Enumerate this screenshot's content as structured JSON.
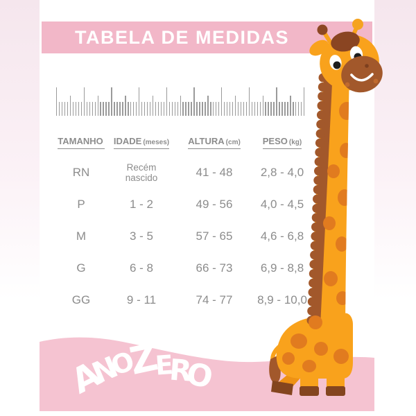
{
  "header": {
    "title": "TABELA DE MEDIDAS"
  },
  "table": {
    "columns": [
      {
        "label": "TAMANHO",
        "unit": ""
      },
      {
        "label": "IDADE",
        "unit": "(meses)"
      },
      {
        "label": "ALTURA",
        "unit": "(cm)"
      },
      {
        "label": "PESO",
        "unit": "(kg)"
      }
    ],
    "rows": [
      {
        "size": "RN",
        "age": "Recém nascido",
        "height": "41 - 48",
        "weight": "2,8 - 4,0"
      },
      {
        "size": "P",
        "age": "1 - 2",
        "height": "49 - 56",
        "weight": "4,0 - 4,5"
      },
      {
        "size": "M",
        "age": "3 - 5",
        "height": "57 - 65",
        "weight": "4,6 - 6,8"
      },
      {
        "size": "G",
        "age": "6 - 8",
        "height": "66 - 73",
        "weight": "6,9 - 8,8"
      },
      {
        "size": "GG",
        "age": "9 - 11",
        "height": "74 - 77",
        "weight": "8,9 - 10,0"
      }
    ]
  },
  "brand": {
    "logo_text": "ANOZERO",
    "registered_mark": "®"
  },
  "icons": {
    "ruler": "measuring-ruler-icon",
    "mascot": "giraffe-mascot"
  },
  "colors": {
    "band_pink": "#f2b7c8",
    "wave_pink": "#f5c3d1",
    "text_gray": "#8c8c8c",
    "giraffe_orange": "#F9A21C",
    "giraffe_spot": "#E17B1F",
    "giraffe_brown": "#A2582B",
    "giraffe_dark_brown": "#8C4723",
    "title_text": "#ffffff"
  },
  "chart_data": {
    "type": "table",
    "title": "TABELA DE MEDIDAS",
    "columns": [
      "TAMANHO",
      "IDADE (meses)",
      "ALTURA (cm)",
      "PESO (kg)"
    ],
    "rows": [
      [
        "RN",
        "Recém nascido",
        "41 - 48",
        "2,8 - 4,0"
      ],
      [
        "P",
        "1 - 2",
        "49 - 56",
        "4,0 - 4,5"
      ],
      [
        "M",
        "3 - 5",
        "57 - 65",
        "4,6 - 6,8"
      ],
      [
        "G",
        "6 - 8",
        "66 - 73",
        "6,9 - 8,8"
      ],
      [
        "GG",
        "9 - 11",
        "74 - 77",
        "8,9 - 10,0"
      ]
    ]
  }
}
